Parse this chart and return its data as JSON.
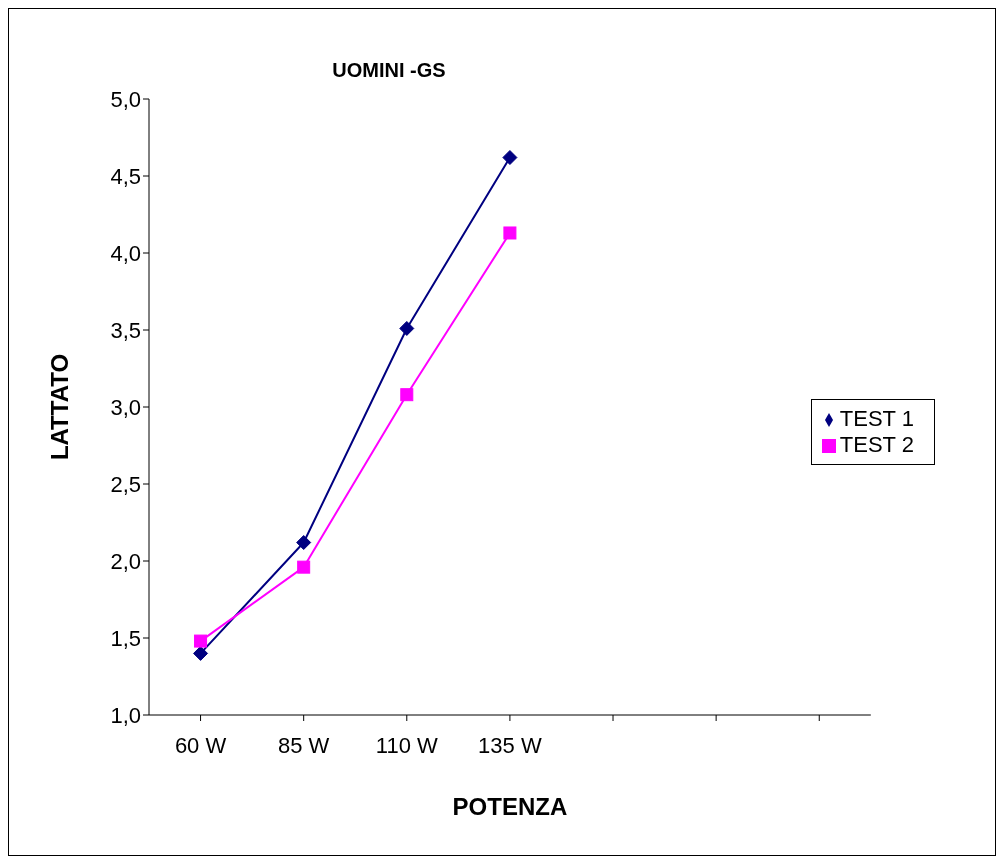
{
  "chart_data": {
    "type": "line",
    "title": "UOMINI -GS",
    "xlabel": "POTENZA",
    "ylabel": "LATTATO",
    "categories": [
      "60 W",
      "85 W",
      "110 W",
      "135 W",
      null,
      null,
      null
    ],
    "series": [
      {
        "name": "TEST 1",
        "color": "#000080",
        "marker": "diamond",
        "values": [
          1.4,
          2.12,
          3.51,
          4.62,
          null,
          null,
          null
        ]
      },
      {
        "name": "TEST 2",
        "color": "#ff00ff",
        "marker": "square",
        "values": [
          1.48,
          1.96,
          3.08,
          4.13,
          null,
          null,
          null
        ]
      }
    ],
    "ylim": [
      1,
      5
    ],
    "yticks": [
      {
        "value": 1,
        "label": "1,0"
      },
      {
        "value": 1.5,
        "label": "1,5"
      },
      {
        "value": 2,
        "label": "2,0"
      },
      {
        "value": 2.5,
        "label": "2,5"
      },
      {
        "value": 3,
        "label": "3,0"
      },
      {
        "value": 3.5,
        "label": "3,5"
      },
      {
        "value": 4,
        "label": "4,0"
      },
      {
        "value": 4.5,
        "label": "4,5"
      },
      {
        "value": 5,
        "label": "5,0"
      }
    ],
    "grid": false,
    "legend": "right",
    "line_style": "solid"
  }
}
